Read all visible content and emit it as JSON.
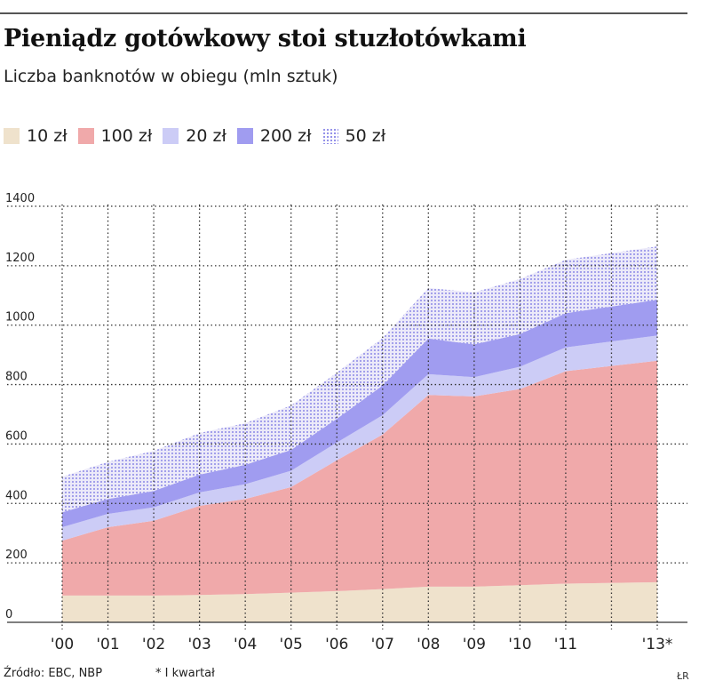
{
  "title": "Pieniądz gotówkowy stoi stuzłotówkami",
  "subtitle": "Liczba banknotów w obiegu (mln sztuk)",
  "legend": [
    {
      "label": "10 zł",
      "color": "#efe2cc",
      "pattern": false
    },
    {
      "label": "100 zł",
      "color": "#f0a9aa",
      "pattern": false
    },
    {
      "label": "20 zł",
      "color": "#ccccf6",
      "pattern": false
    },
    {
      "label": "200 zł",
      "color": "#a09cf0",
      "pattern": false
    },
    {
      "label": "50 zł",
      "color": "#c8c6f5",
      "pattern": true
    }
  ],
  "footer": {
    "source": "Źródło: EBC, NBP",
    "note": "* I kwartał",
    "author": "ŁR"
  },
  "chart_data": {
    "type": "area",
    "stacked": true,
    "title": "Pieniądz gotówkowy stoi stuzłotówkami",
    "subtitle": "Liczba banknotów w obiegu (mln sztuk)",
    "unit": "mln sztuk",
    "x": [
      2000,
      2001,
      2002,
      2003,
      2004,
      2005,
      2006,
      2007,
      2008,
      2009,
      2010,
      2011,
      2013
    ],
    "x_tick_labels": [
      "'00",
      "'01",
      "'02",
      "'03",
      "'04",
      "'05",
      "'06",
      "'07",
      "'08",
      "'09",
      "'10",
      "'11",
      "'13*"
    ],
    "ylim": [
      0,
      1400
    ],
    "y_ticks": [
      0,
      200,
      400,
      600,
      800,
      1000,
      1200,
      1400
    ],
    "grid": true,
    "legend_position": "top",
    "series": [
      {
        "name": "10 zł",
        "color": "#efe2cc",
        "values": [
          90,
          90,
          90,
          92,
          95,
          100,
          105,
          112,
          120,
          120,
          125,
          130,
          135
        ]
      },
      {
        "name": "100 zł",
        "color": "#f0a9aa",
        "values": [
          185,
          230,
          252,
          300,
          320,
          355,
          440,
          520,
          645,
          640,
          660,
          715,
          745
        ]
      },
      {
        "name": "20 zł",
        "color": "#ccccf6",
        "values": [
          45,
          45,
          45,
          45,
          50,
          55,
          60,
          65,
          70,
          65,
          75,
          80,
          85
        ]
      },
      {
        "name": "200 zł",
        "color": "#a09cf0",
        "values": [
          50,
          50,
          55,
          60,
          65,
          70,
          80,
          100,
          120,
          110,
          110,
          115,
          120
        ]
      },
      {
        "name": "50 zł",
        "color": "#c8c6f5",
        "values": [
          120,
          125,
          135,
          140,
          140,
          150,
          155,
          160,
          170,
          175,
          185,
          180,
          180
        ]
      }
    ]
  }
}
